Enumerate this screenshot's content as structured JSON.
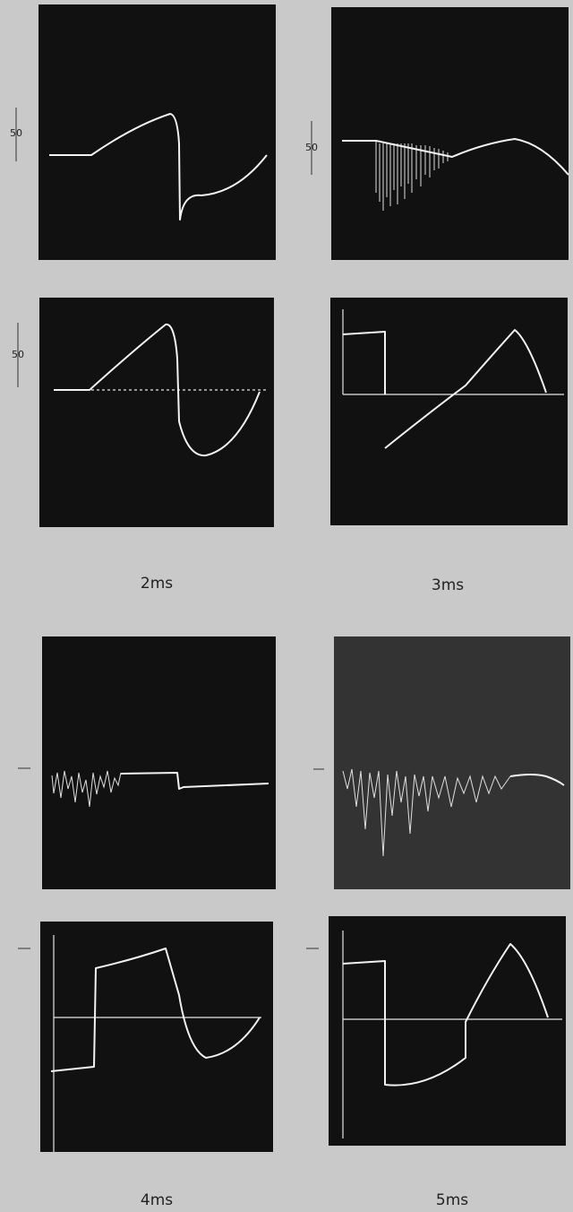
{
  "scale_labels": [
    "50",
    "50",
    "50"
  ],
  "captions": [
    "2ms",
    "3ms",
    "4ms",
    "5ms"
  ]
}
